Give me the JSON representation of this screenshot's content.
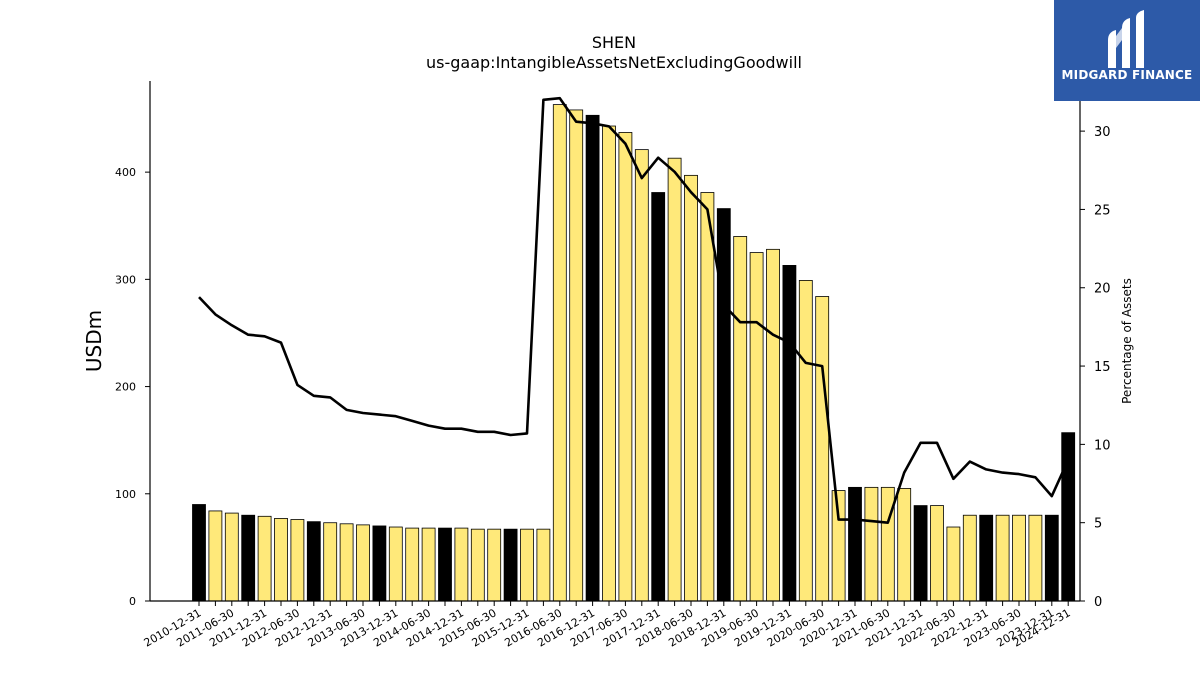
{
  "chart_data": {
    "type": "bar",
    "title": "SHEN",
    "subtitle": "us-gaap:IntangibleAssetsNetExcludingGoodwill",
    "ylabel": "USDm",
    "y2label": "Percentage of Assets",
    "ylim": [
      0,
      485
    ],
    "y2lim": [
      0,
      33.2
    ],
    "yticks": [
      0,
      100,
      200,
      300,
      400
    ],
    "y2ticks": [
      0,
      5,
      10,
      15,
      20,
      25,
      30
    ],
    "categories": [
      "2010-12-31",
      "2011-03-31",
      "2011-06-30",
      "2011-09-30",
      "2011-12-31",
      "2012-03-31",
      "2012-06-30",
      "2012-09-30",
      "2012-12-31",
      "2013-03-31",
      "2013-06-30",
      "2013-09-30",
      "2013-12-31",
      "2014-03-31",
      "2014-06-30",
      "2014-09-30",
      "2014-12-31",
      "2015-03-31",
      "2015-06-30",
      "2015-09-30",
      "2015-12-31",
      "2016-03-31",
      "2016-06-30",
      "2016-09-30",
      "2016-12-31",
      "2017-03-31",
      "2017-06-30",
      "2017-09-30",
      "2017-12-31",
      "2018-03-31",
      "2018-06-30",
      "2018-09-30",
      "2018-12-31",
      "2019-03-31",
      "2019-06-30",
      "2019-09-30",
      "2019-12-31",
      "2020-03-31",
      "2020-06-30",
      "2020-09-30",
      "2020-12-31",
      "2021-03-31",
      "2021-06-30",
      "2021-09-30",
      "2021-12-31",
      "2022-03-31",
      "2022-06-30",
      "2022-09-30",
      "2022-12-31",
      "2023-03-31",
      "2023-06-30",
      "2023-09-30",
      "2023-12-31",
      "2024-12-31"
    ],
    "xtick_labels": [
      "2010-12-31",
      "",
      "2011-06-30",
      "",
      "2011-12-31",
      "",
      "2012-06-30",
      "",
      "2012-12-31",
      "",
      "2013-06-30",
      "",
      "2013-12-31",
      "",
      "2014-06-30",
      "",
      "2014-12-31",
      "",
      "2015-06-30",
      "",
      "2015-12-31",
      "",
      "2016-06-30",
      "",
      "2016-12-31",
      "",
      "2017-06-30",
      "",
      "2017-12-31",
      "",
      "2018-06-30",
      "",
      "2018-12-31",
      "",
      "2019-06-30",
      "",
      "2019-12-31",
      "",
      "2020-06-30",
      "",
      "2020-12-31",
      "",
      "2021-06-30",
      "",
      "2021-12-31",
      "",
      "2022-06-30",
      "",
      "2022-12-31",
      "",
      "2023-06-30",
      "",
      "2023-12-31",
      "2024-12-31"
    ],
    "series": [
      {
        "type": "bar",
        "values": [
          90,
          84,
          82,
          80,
          79,
          77,
          76,
          74,
          73,
          72,
          71,
          70,
          69,
          68,
          68,
          68,
          68,
          67,
          67,
          67,
          67,
          67,
          463,
          458,
          453,
          443,
          437,
          421,
          381,
          413,
          397,
          381,
          366,
          340,
          325,
          328,
          313,
          299,
          284,
          103,
          106,
          106,
          106,
          105,
          89,
          89,
          69,
          80,
          80,
          80,
          80,
          80,
          80,
          157
        ],
        "annual": [
          true,
          false,
          false,
          true,
          false,
          false,
          false,
          true,
          false,
          false,
          false,
          true,
          false,
          false,
          false,
          true,
          false,
          false,
          false,
          true,
          false,
          false,
          false,
          false,
          true,
          false,
          false,
          false,
          true,
          false,
          false,
          false,
          true,
          false,
          false,
          false,
          true,
          false,
          false,
          false,
          true,
          false,
          false,
          false,
          true,
          false,
          false,
          false,
          true,
          false,
          false,
          false,
          true,
          true
        ]
      },
      {
        "type": "line",
        "axis": "right",
        "values": [
          19.4,
          18.3,
          17.6,
          17.0,
          16.9,
          16.5,
          13.8,
          13.1,
          13.0,
          12.2,
          12.0,
          11.9,
          11.8,
          11.5,
          11.2,
          11.0,
          11.0,
          10.8,
          10.8,
          10.6,
          10.7,
          32.0,
          32.1,
          30.6,
          30.5,
          30.3,
          29.2,
          27.0,
          28.3,
          27.4,
          26.1,
          25.0,
          18.9,
          17.8,
          17.8,
          17.0,
          16.5,
          15.2,
          15.0,
          5.2,
          5.2,
          5.1,
          5.0,
          8.2,
          10.1,
          10.1,
          7.8,
          8.9,
          8.4,
          8.2,
          8.1,
          7.9,
          6.7,
          9.0
        ]
      }
    ],
    "colors": {
      "annual_bar": "#000000",
      "quarter_bar": "#ffe97a",
      "bar_edge": "#000000",
      "line": "#000000"
    },
    "grid": false
  },
  "logo": {
    "text": "MIDGARD FINANCE",
    "background": "#2d5aa8"
  }
}
